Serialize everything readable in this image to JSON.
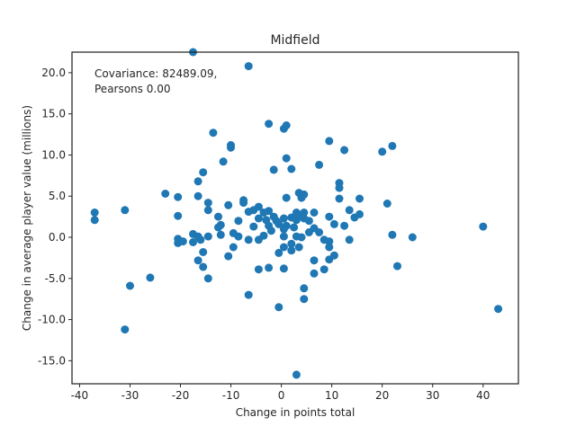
{
  "chart_data": {
    "type": "scatter",
    "title": "Midfield",
    "xlabel": "Change in points total",
    "ylabel": "Change in average player value (millions)",
    "annotation": [
      "Covariance: 82489.09,",
      "Pearsons 0.00"
    ],
    "xlim": [
      -41.5,
      47
    ],
    "ylim": [
      -17.8,
      22.5
    ],
    "xticks": [
      -40,
      -30,
      -20,
      -10,
      0,
      10,
      20,
      30,
      40
    ],
    "yticks": [
      -15.0,
      -10.0,
      -5.0,
      0.0,
      5.0,
      10.0,
      15.0,
      20.0
    ],
    "grid": false,
    "marker_color": "#1f77b4",
    "series": [
      {
        "points": [
          [
            -37,
            3.0
          ],
          [
            -37,
            2.1
          ],
          [
            -31,
            3.3
          ],
          [
            -31,
            -11.2
          ],
          [
            -30,
            -5.9
          ],
          [
            -26,
            -4.9
          ],
          [
            -23,
            5.3
          ],
          [
            -20.5,
            4.9
          ],
          [
            -20.5,
            2.6
          ],
          [
            -20.5,
            -0.2
          ],
          [
            -20.5,
            -0.7
          ],
          [
            -19.5,
            -0.5
          ],
          [
            -17.5,
            22.5
          ],
          [
            -17.5,
            0.4
          ],
          [
            -17.5,
            -0.6
          ],
          [
            -16.5,
            6.8
          ],
          [
            -16.5,
            5.0
          ],
          [
            -16.5,
            0.1
          ],
          [
            -16.5,
            -2.8
          ],
          [
            -16,
            -0.3
          ],
          [
            -15.5,
            7.9
          ],
          [
            -15.5,
            -1.8
          ],
          [
            -15.5,
            -3.6
          ],
          [
            -14.5,
            4.2
          ],
          [
            -14.5,
            3.3
          ],
          [
            -14.5,
            0.1
          ],
          [
            -14.5,
            -5.0
          ],
          [
            -13.5,
            12.7
          ],
          [
            -12.5,
            2.5
          ],
          [
            -12.5,
            1.2
          ],
          [
            -12,
            1.5
          ],
          [
            -12,
            0.3
          ],
          [
            -11.5,
            9.2
          ],
          [
            -10.5,
            3.9
          ],
          [
            -10.5,
            -2.3
          ],
          [
            -10,
            11.2
          ],
          [
            -10,
            10.9
          ],
          [
            -9.5,
            0.5
          ],
          [
            -9.5,
            -1.2
          ],
          [
            -8.5,
            2.0
          ],
          [
            -8.5,
            0.1
          ],
          [
            -7.5,
            4.5
          ],
          [
            -7.5,
            4.2
          ],
          [
            -6.5,
            3.1
          ],
          [
            -6.5,
            -0.3
          ],
          [
            -6.5,
            -7.0
          ],
          [
            -5.5,
            3.3
          ],
          [
            -5.5,
            1.3
          ],
          [
            -4.5,
            3.7
          ],
          [
            -4.5,
            2.3
          ],
          [
            -4.5,
            -0.3
          ],
          [
            -4.5,
            -3.9
          ],
          [
            -3.5,
            3.0
          ],
          [
            -3.5,
            0.2
          ],
          [
            -3,
            2.1
          ],
          [
            -2.5,
            3.2
          ],
          [
            -2.5,
            1.4
          ],
          [
            -2.5,
            -3.7
          ],
          [
            -2.5,
            13.8
          ],
          [
            -2,
            0.8
          ],
          [
            -1.5,
            8.2
          ],
          [
            -1.5,
            2.5
          ],
          [
            -1,
            2.0
          ],
          [
            -0.5,
            1.6
          ],
          [
            -0.5,
            -1.9
          ],
          [
            -0.5,
            -8.5
          ],
          [
            0.5,
            13.2
          ],
          [
            0.5,
            2.3
          ],
          [
            0.5,
            1.0
          ],
          [
            0.5,
            0.1
          ],
          [
            0.5,
            -1.2
          ],
          [
            0.5,
            -3.8
          ],
          [
            1,
            13.6
          ],
          [
            1,
            9.6
          ],
          [
            1,
            4.8
          ],
          [
            1,
            1.4
          ],
          [
            2,
            8.3
          ],
          [
            2,
            2.4
          ],
          [
            2,
            -0.8
          ],
          [
            2,
            -1.6
          ],
          [
            2.5,
            1.2
          ],
          [
            3,
            3.0
          ],
          [
            3,
            2.1
          ],
          [
            3,
            0.1
          ],
          [
            3,
            -16.7
          ],
          [
            3.5,
            5.4
          ],
          [
            3.5,
            -1.2
          ],
          [
            4,
            4.8
          ],
          [
            4,
            2.6
          ],
          [
            4,
            0.0
          ],
          [
            4.5,
            5.2
          ],
          [
            4.5,
            3.0
          ],
          [
            4.5,
            2.3
          ],
          [
            4.5,
            -6.2
          ],
          [
            4.5,
            -7.5
          ],
          [
            5.5,
            2.0
          ],
          [
            5.5,
            0.6
          ],
          [
            6.5,
            3.0
          ],
          [
            6.5,
            1.1
          ],
          [
            6.5,
            -2.8
          ],
          [
            6.5,
            -4.4
          ],
          [
            7.5,
            8.8
          ],
          [
            7.5,
            0.6
          ],
          [
            8.5,
            -0.3
          ],
          [
            8.5,
            -3.9
          ],
          [
            9.5,
            11.7
          ],
          [
            9.5,
            2.5
          ],
          [
            9.5,
            -0.5
          ],
          [
            9.5,
            -1.2
          ],
          [
            9.5,
            -2.7
          ],
          [
            10.5,
            1.6
          ],
          [
            10.5,
            -2.2
          ],
          [
            11.5,
            6.6
          ],
          [
            11.5,
            6.0
          ],
          [
            11.5,
            4.7
          ],
          [
            12.5,
            10.6
          ],
          [
            12.5,
            1.4
          ],
          [
            13.5,
            3.3
          ],
          [
            13.5,
            -0.3
          ],
          [
            14.5,
            2.4
          ],
          [
            15.5,
            4.7
          ],
          [
            15.5,
            2.8
          ],
          [
            20,
            10.4
          ],
          [
            21,
            4.1
          ],
          [
            22,
            11.1
          ],
          [
            22,
            0.3
          ],
          [
            23,
            -3.5
          ],
          [
            26,
            0.0
          ],
          [
            40,
            1.3
          ],
          [
            43,
            -8.7
          ],
          [
            -6.5,
            20.8
          ]
        ]
      }
    ]
  }
}
